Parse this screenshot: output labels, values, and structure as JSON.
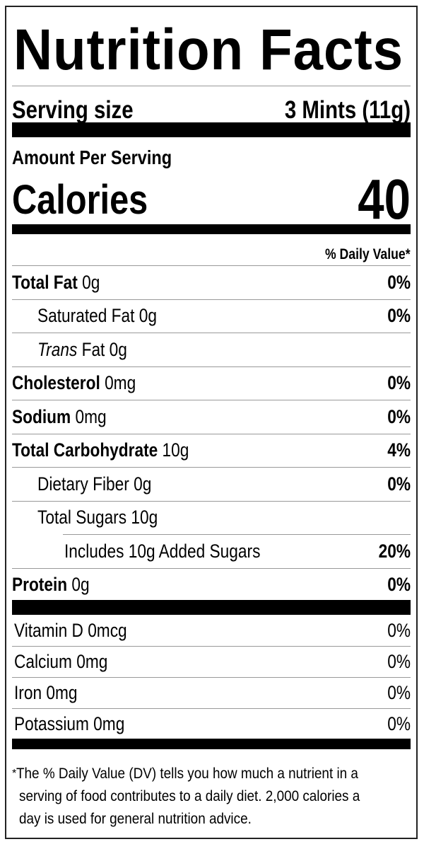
{
  "title": "Nutrition Facts",
  "serving": {
    "label": "Serving size",
    "value": "3 Mints (11g)"
  },
  "amount_per_serving": "Amount Per Serving",
  "calories": {
    "label": "Calories",
    "value": "40"
  },
  "daily_value_header": "% Daily Value*",
  "nutrients": [
    {
      "name": "Total Fat",
      "amount": " 0g",
      "dv": "0%"
    },
    {
      "name": "Saturated Fat 0g",
      "amount": "",
      "dv": "0%"
    },
    {
      "name": "Trans",
      "amount": " Fat 0g",
      "dv": ""
    },
    {
      "name": "Cholesterol",
      "amount": " 0mg",
      "dv": "0%"
    },
    {
      "name": "Sodium",
      "amount": " 0mg",
      "dv": "0%"
    },
    {
      "name": "Total Carbohydrate",
      "amount": " 10g",
      "dv": "4%"
    },
    {
      "name": "Dietary Fiber 0g",
      "amount": "",
      "dv": "0%"
    },
    {
      "name": "Total Sugars 10g",
      "amount": "",
      "dv": ""
    },
    {
      "name": "Includes 10g Added Sugars",
      "amount": "",
      "dv": "20%"
    },
    {
      "name": "Protein",
      "amount": " 0g",
      "dv": "0%"
    }
  ],
  "vitamins": [
    {
      "name": "Vitamin D 0mcg",
      "dv": "0%"
    },
    {
      "name": "Calcium 0mg",
      "dv": "0%"
    },
    {
      "name": "Iron 0mg",
      "dv": "0%"
    },
    {
      "name": "Potassium 0mg",
      "dv": "0%"
    }
  ],
  "footnote": {
    "asterisk": "*",
    "lines": [
      "The % Daily Value (DV) tells you how much a nutrient in a",
      "serving of food contributes to a daily diet. 2,000 calories a",
      "day is used for general nutrition advice."
    ]
  }
}
